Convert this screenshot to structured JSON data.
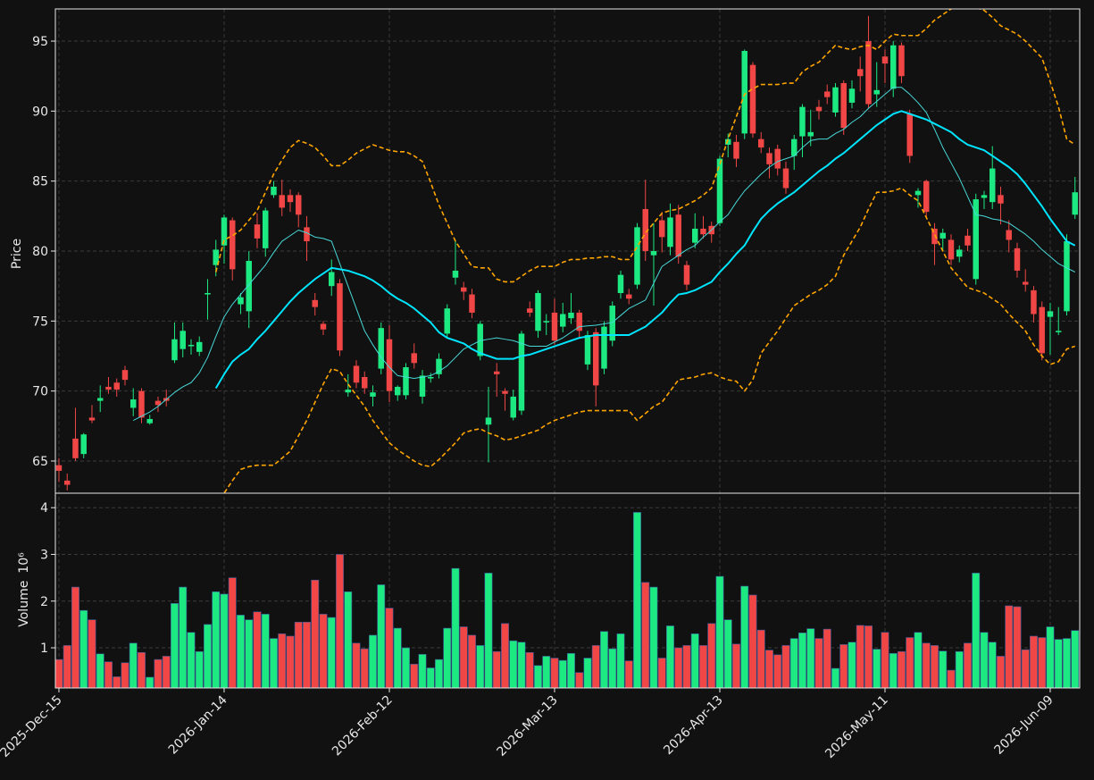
{
  "chart_data": {
    "type": "candlestick",
    "ylabel": "Price",
    "volume_ylabel": "Volume",
    "volume_scale": "10⁶",
    "categories": [
      "2025-Dec-15",
      null,
      null,
      null,
      null,
      null,
      null,
      null,
      null,
      null,
      null,
      null,
      null,
      null,
      null,
      null,
      null,
      null,
      null,
      null,
      "2026-Jan-14",
      null,
      null,
      null,
      null,
      null,
      null,
      null,
      null,
      null,
      null,
      null,
      null,
      null,
      null,
      null,
      null,
      null,
      null,
      null,
      "2026-Feb-12",
      null,
      null,
      null,
      null,
      null,
      null,
      null,
      null,
      null,
      null,
      null,
      null,
      null,
      null,
      null,
      null,
      null,
      null,
      null,
      "2026-Mar-13",
      null,
      null,
      null,
      null,
      null,
      null,
      null,
      null,
      null,
      null,
      null,
      null,
      null,
      null,
      null,
      null,
      null,
      null,
      null,
      "2026-Apr-13",
      null,
      null,
      null,
      null,
      null,
      null,
      null,
      null,
      null,
      null,
      null,
      null,
      null,
      null,
      null,
      null,
      null,
      null,
      null,
      "2026-May-11",
      null,
      null,
      null,
      null,
      null,
      null,
      null,
      null,
      null,
      null,
      null,
      null,
      null,
      null,
      null,
      null,
      null,
      null,
      null,
      "2026-Jun-09",
      null,
      null,
      null
    ],
    "xlim": [
      -0.43,
      123.57
    ],
    "open": [
      64.7,
      63.6,
      66.6,
      65.5,
      68.1,
      69.3,
      70.3,
      70.6,
      71.5,
      68.8,
      70.0,
      67.7,
      69.3,
      69.5,
      72.2,
      73.0,
      73.2,
      72.8,
      76.9,
      79.0,
      80.4,
      82.2,
      76.2,
      75.7,
      81.9,
      80.2,
      84.0,
      84.0,
      84.0,
      84.0,
      81.7,
      76.5,
      74.8,
      77.5,
      77.7,
      69.9,
      71.8,
      71.0,
      69.6,
      71.6,
      73.7,
      69.7,
      69.7,
      72.7,
      69.6,
      70.9,
      71.2,
      74.1,
      78.1,
      77.4,
      76.9,
      72.5,
      67.6,
      71.4,
      70.0,
      68.1,
      68.6,
      75.9,
      74.3,
      74.9,
      75.6,
      74.6,
      75.2,
      75.6,
      71.9,
      74.2,
      71.6,
      73.6,
      77.0,
      76.9,
      77.6,
      83.0,
      79.7,
      82.2,
      80.3,
      82.6,
      79.0,
      80.6,
      81.6,
      81.8,
      82.0,
      87.6,
      87.8,
      88.4,
      93.3,
      88.0,
      87.0,
      87.3,
      85.9,
      86.8,
      88.2,
      88.2,
      90.3,
      91.4,
      89.9,
      92.0,
      90.6,
      93.0,
      95.0,
      91.2,
      93.9,
      91.6,
      94.7,
      89.8,
      84.0,
      85.0,
      81.6,
      80.9,
      80.8,
      79.6,
      81.1,
      78.0,
      83.8,
      83.5,
      84.0,
      81.5,
      80.2,
      77.8,
      77.2,
      76.0,
      75.3,
      74.2,
      75.7,
      82.6
    ],
    "high": [
      65.2,
      64.1,
      68.8,
      67.0,
      69.0,
      70.4,
      71.0,
      70.9,
      71.8,
      70.2,
      70.2,
      68.3,
      69.6,
      70.1,
      74.9,
      74.9,
      73.7,
      73.9,
      78.0,
      80.8,
      82.6,
      82.4,
      77.0,
      80.0,
      82.7,
      83.1,
      85.0,
      85.1,
      84.4,
      84.2,
      82.5,
      77.0,
      75.0,
      79.4,
      78.0,
      71.2,
      72.2,
      71.4,
      70.4,
      74.9,
      74.7,
      70.4,
      72.0,
      73.4,
      71.5,
      71.3,
      72.7,
      76.2,
      80.8,
      77.8,
      77.3,
      75.0,
      70.3,
      72.0,
      70.2,
      70.1,
      74.3,
      76.4,
      77.2,
      75.5,
      76.6,
      76.3,
      77.0,
      75.8,
      74.3,
      74.5,
      75.0,
      76.4,
      78.6,
      77.3,
      82.0,
      85.1,
      82.0,
      82.8,
      83.4,
      83.3,
      79.3,
      82.7,
      82.5,
      82.1,
      86.8,
      88.4,
      88.3,
      94.4,
      93.5,
      88.5,
      87.4,
      87.6,
      86.4,
      88.3,
      90.5,
      90.1,
      90.8,
      91.9,
      92.0,
      92.2,
      92.2,
      93.9,
      96.8,
      93.5,
      94.4,
      95.0,
      94.9,
      90.1,
      84.5,
      85.1,
      82.0,
      81.6,
      81.2,
      80.4,
      81.6,
      84.1,
      84.3,
      87.5,
      84.6,
      82.2,
      80.6,
      78.7,
      77.5,
      76.4,
      76.3,
      76.0,
      81.2,
      85.3
    ],
    "low": [
      63.5,
      62.9,
      65.0,
      65.2,
      67.7,
      68.5,
      69.8,
      69.6,
      70.4,
      68.2,
      67.7,
      67.6,
      68.5,
      68.9,
      72.0,
      72.4,
      72.6,
      72.5,
      75.1,
      78.2,
      79.1,
      77.9,
      75.5,
      74.5,
      80.2,
      79.6,
      83.8,
      82.5,
      82.8,
      81.7,
      79.3,
      75.4,
      74.0,
      76.8,
      72.5,
      69.6,
      70.2,
      69.8,
      68.9,
      71.2,
      69.2,
      69.3,
      69.4,
      71.6,
      69.1,
      70.6,
      70.9,
      73.8,
      77.6,
      76.5,
      75.2,
      72.2,
      64.9,
      69.6,
      68.6,
      67.9,
      68.3,
      75.3,
      73.8,
      74.0,
      73.3,
      74.2,
      74.8,
      73.8,
      71.5,
      68.9,
      71.2,
      73.2,
      76.6,
      76.2,
      77.3,
      79.3,
      76.1,
      79.9,
      79.7,
      79.1,
      77.2,
      80.2,
      80.9,
      80.6,
      81.8,
      86.7,
      86.0,
      88.0,
      88.1,
      87.0,
      85.2,
      85.4,
      84.1,
      85.8,
      86.7,
      87.5,
      89.4,
      90.5,
      89.6,
      88.3,
      90.2,
      91.4,
      90.2,
      90.3,
      92.0,
      91.0,
      92.0,
      86.3,
      83.1,
      82.4,
      79.0,
      80.0,
      79.0,
      79.2,
      80.0,
      77.6,
      83.0,
      83.0,
      81.9,
      79.9,
      78.1,
      77.1,
      74.9,
      72.2,
      72.6,
      74.0,
      75.4,
      82.3
    ],
    "close": [
      64.3,
      63.3,
      65.2,
      66.9,
      67.9,
      69.5,
      70.1,
      70.1,
      70.8,
      69.4,
      68.1,
      68.0,
      69.0,
      69.3,
      73.7,
      74.3,
      73.3,
      73.5,
      77.0,
      80.1,
      82.4,
      78.7,
      76.7,
      79.3,
      80.9,
      82.9,
      84.6,
      83.1,
      83.5,
      82.6,
      80.7,
      76.0,
      74.4,
      78.5,
      72.9,
      70.1,
      70.6,
      70.2,
      69.9,
      74.5,
      70.0,
      70.3,
      71.7,
      72.0,
      71.1,
      71.0,
      72.3,
      75.9,
      78.6,
      77.1,
      75.6,
      74.8,
      68.1,
      71.2,
      69.8,
      69.6,
      74.1,
      75.6,
      77.0,
      75.0,
      73.6,
      75.5,
      75.6,
      74.3,
      74.0,
      70.4,
      74.6,
      76.1,
      78.3,
      76.6,
      81.7,
      80.0,
      80.0,
      81.0,
      82.4,
      79.6,
      77.6,
      81.6,
      81.2,
      81.2,
      86.6,
      88.0,
      86.6,
      94.3,
      88.4,
      87.4,
      86.2,
      85.9,
      84.5,
      88.0,
      90.3,
      88.5,
      90.0,
      91.0,
      91.7,
      88.8,
      91.6,
      92.5,
      90.5,
      91.5,
      93.4,
      94.7,
      92.5,
      86.8,
      84.3,
      82.8,
      80.5,
      81.3,
      79.4,
      80.1,
      80.4,
      83.7,
      84.0,
      85.9,
      83.4,
      80.8,
      78.6,
      77.6,
      75.5,
      72.7,
      75.7,
      74.3,
      80.7,
      84.2
    ],
    "volume": [
      0.75,
      1.05,
      2.3,
      1.8,
      1.6,
      0.87,
      0.7,
      0.38,
      0.68,
      1.1,
      0.9,
      0.37,
      0.75,
      0.82,
      1.95,
      2.3,
      1.33,
      0.92,
      1.5,
      2.2,
      2.15,
      2.5,
      1.7,
      1.6,
      1.77,
      1.72,
      1.2,
      1.3,
      1.25,
      1.55,
      1.55,
      2.45,
      1.72,
      1.65,
      3.0,
      2.2,
      1.1,
      0.98,
      1.27,
      2.35,
      1.85,
      1.42,
      1.0,
      0.65,
      0.86,
      0.57,
      0.75,
      1.42,
      2.7,
      1.45,
      1.27,
      1.05,
      2.6,
      0.92,
      1.52,
      1.15,
      1.12,
      0.9,
      0.62,
      0.82,
      0.78,
      0.73,
      0.88,
      0.47,
      0.78,
      1.05,
      1.35,
      0.98,
      1.3,
      0.72,
      3.9,
      2.4,
      2.3,
      0.78,
      1.47,
      1.0,
      1.05,
      1.3,
      1.05,
      1.52,
      2.53,
      1.6,
      1.08,
      2.32,
      2.13,
      1.38,
      0.95,
      0.85,
      1.05,
      1.2,
      1.32,
      1.41,
      1.2,
      1.4,
      0.56,
      1.07,
      1.12,
      1.48,
      1.47,
      0.97,
      1.33,
      0.88,
      0.92,
      1.22,
      1.33,
      1.1,
      1.05,
      0.93,
      0.52,
      0.92,
      1.1,
      2.6,
      1.33,
      1.12,
      0.82,
      1.9,
      1.88,
      0.96,
      1.25,
      1.22,
      1.45,
      1.18,
      1.2,
      1.37
    ],
    "up_color": "#1de982",
    "down_color": "#f04646",
    "ylim": [
      62.7,
      97.3
    ],
    "yticks": [
      65,
      70,
      75,
      80,
      85,
      90,
      95
    ],
    "volume_ylim": [
      0.14,
      4.31
    ],
    "volume_yticks": [
      1,
      2,
      3,
      4
    ],
    "grid": true,
    "overlays": [
      {
        "color": "#48d8d8",
        "width": 1,
        "dashed": false,
        "values": [
          null,
          null,
          null,
          null,
          null,
          null,
          null,
          null,
          null,
          67.9,
          68.2,
          68.5,
          68.9,
          69.4,
          69.9,
          70.3,
          70.6,
          71.3,
          72.4,
          73.9,
          75.3,
          76.2,
          76.9,
          77.6,
          78.3,
          79.0,
          79.9,
          80.7,
          81.1,
          81.5,
          81.3,
          81.0,
          80.9,
          80.7,
          79.1,
          77.5,
          75.9,
          74.3,
          73.3,
          72.4,
          71.7,
          71.1,
          71.0,
          70.9,
          71.0,
          71.1,
          71.4,
          71.8,
          72.4,
          73.0,
          73.3,
          73.6,
          73.7,
          73.8,
          73.7,
          73.6,
          73.4,
          73.2,
          73.2,
          73.2,
          73.5,
          73.8,
          74.2,
          74.6,
          74.65,
          74.7,
          74.8,
          74.9,
          75.4,
          75.9,
          76.2,
          76.5,
          77.7,
          78.9,
          79.3,
          79.7,
          80.1,
          80.4,
          81.0,
          81.5,
          82.1,
          82.6,
          83.5,
          84.3,
          84.9,
          85.5,
          86.0,
          86.4,
          86.6,
          86.8,
          87.4,
          87.9,
          88.0,
          88.0,
          88.4,
          88.7,
          89.2,
          89.6,
          90.2,
          90.7,
          91.2,
          91.7,
          91.7,
          91.2,
          90.6,
          89.9,
          88.7,
          87.4,
          86.3,
          85.2,
          83.9,
          82.6,
          82.5,
          82.3,
          82.2,
          82.0,
          81.6,
          81.2,
          80.7,
          80.1,
          79.6,
          79.1,
          78.8,
          78.5
        ]
      },
      {
        "color": "#00e5ff",
        "width": 2,
        "dashed": false,
        "values": [
          null,
          null,
          null,
          null,
          null,
          null,
          null,
          null,
          null,
          null,
          null,
          null,
          null,
          null,
          null,
          null,
          null,
          null,
          null,
          70.2,
          71.2,
          72.1,
          72.6,
          73.0,
          73.7,
          74.3,
          75.0,
          75.7,
          76.4,
          77.0,
          77.5,
          78.0,
          78.4,
          78.8,
          78.7,
          78.6,
          78.4,
          78.2,
          77.9,
          77.5,
          77.0,
          76.6,
          76.3,
          75.9,
          75.4,
          74.9,
          74.2,
          73.8,
          73.6,
          73.4,
          73.0,
          72.7,
          72.5,
          72.3,
          72.3,
          72.3,
          72.5,
          72.6,
          72.8,
          73.0,
          73.2,
          73.4,
          73.6,
          73.8,
          73.9,
          74.0,
          74.0,
          74.0,
          74.0,
          74.0,
          74.3,
          74.6,
          75.1,
          75.6,
          76.3,
          76.9,
          77.0,
          77.2,
          77.5,
          77.8,
          78.5,
          79.1,
          79.8,
          80.4,
          81.4,
          82.3,
          82.9,
          83.4,
          83.8,
          84.2,
          84.7,
          85.2,
          85.7,
          86.1,
          86.6,
          87.0,
          87.5,
          88.0,
          88.5,
          89.0,
          89.4,
          89.8,
          90.0,
          89.8,
          89.6,
          89.4,
          89.1,
          88.8,
          88.5,
          88.0,
          87.6,
          87.4,
          87.2,
          86.8,
          86.4,
          86.0,
          85.5,
          84.8,
          84.0,
          83.2,
          82.3,
          81.5,
          80.7,
          80.4
        ]
      },
      {
        "color": "#ffa500",
        "width": 1.6,
        "dashed": true,
        "values": [
          null,
          null,
          null,
          null,
          null,
          null,
          null,
          null,
          null,
          null,
          null,
          null,
          null,
          null,
          null,
          null,
          null,
          null,
          null,
          78.5,
          80.8,
          81.1,
          81.5,
          82.2,
          82.9,
          84.2,
          85.5,
          86.5,
          87.4,
          87.9,
          87.7,
          87.4,
          86.8,
          86.1,
          86.1,
          86.5,
          87.0,
          87.3,
          87.6,
          87.4,
          87.2,
          87.1,
          87.1,
          86.8,
          86.4,
          84.9,
          83.3,
          82.0,
          80.7,
          79.8,
          78.9,
          78.8,
          78.8,
          78.0,
          77.8,
          77.8,
          78.2,
          78.6,
          78.9,
          78.9,
          78.9,
          79.2,
          79.4,
          79.4,
          79.5,
          79.5,
          79.6,
          79.6,
          79.4,
          79.4,
          80.3,
          81.3,
          82.0,
          82.7,
          82.9,
          83.0,
          83.3,
          83.6,
          84.0,
          84.5,
          86.2,
          88.0,
          89.6,
          91.2,
          91.6,
          91.9,
          91.9,
          91.9,
          92.0,
          92.0,
          92.8,
          93.2,
          93.5,
          94.1,
          94.7,
          94.5,
          94.4,
          94.6,
          94.7,
          94.4,
          95.0,
          95.5,
          95.4,
          95.4,
          95.4,
          95.9,
          96.5,
          96.9,
          97.3,
          97.5,
          97.6,
          97.4,
          97.2,
          96.7,
          96.1,
          95.8,
          95.5,
          95.0,
          94.4,
          93.8,
          92.1,
          90.3,
          88.0,
          87.6
        ]
      },
      {
        "color": "#ffa500",
        "width": 1.6,
        "dashed": true,
        "values": [
          null,
          null,
          null,
          null,
          null,
          null,
          null,
          null,
          null,
          null,
          null,
          null,
          null,
          null,
          null,
          null,
          null,
          null,
          null,
          61.9,
          62.7,
          63.6,
          64.4,
          64.6,
          64.7,
          64.7,
          64.7,
          65.2,
          65.7,
          66.8,
          67.9,
          69.2,
          70.5,
          71.6,
          71.4,
          70.5,
          69.7,
          68.9,
          67.9,
          67.1,
          66.3,
          65.8,
          65.4,
          65.0,
          64.7,
          64.6,
          65.1,
          65.7,
          66.3,
          67.0,
          67.2,
          67.3,
          67.0,
          66.8,
          66.5,
          66.6,
          66.8,
          67.0,
          67.2,
          67.6,
          67.9,
          68.1,
          68.3,
          68.5,
          68.6,
          68.6,
          68.6,
          68.6,
          68.6,
          68.6,
          67.9,
          68.4,
          68.9,
          69.2,
          70.0,
          70.8,
          70.9,
          71.0,
          71.2,
          71.3,
          71.0,
          70.8,
          70.7,
          70.0,
          70.8,
          72.7,
          73.5,
          74.3,
          75.2,
          76.1,
          76.5,
          76.9,
          77.2,
          77.6,
          78.2,
          79.7,
          80.7,
          81.7,
          83.0,
          84.2,
          84.2,
          84.3,
          84.5,
          84.0,
          83.6,
          82.4,
          81.2,
          80.0,
          78.8,
          78.1,
          77.4,
          77.2,
          77.0,
          76.6,
          76.2,
          75.5,
          74.9,
          74.3,
          73.3,
          72.5,
          71.9,
          72.1,
          73.0,
          73.2
        ]
      }
    ]
  }
}
